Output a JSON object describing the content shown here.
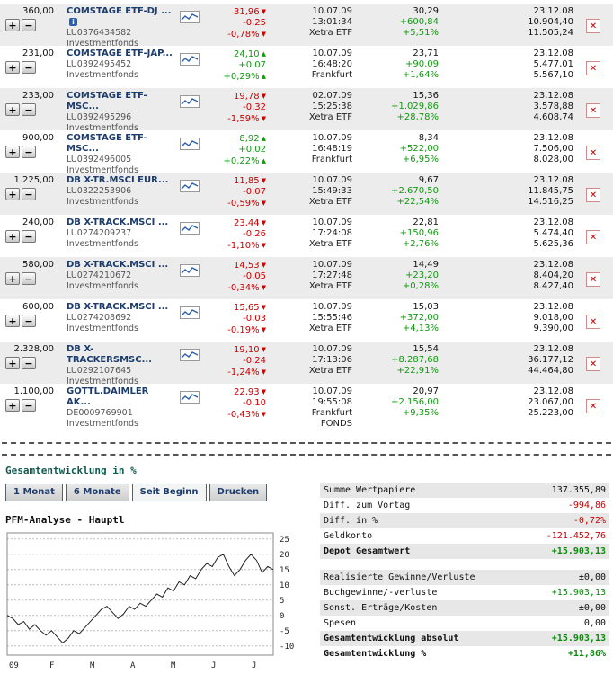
{
  "icons": {
    "plus": "+",
    "minus": "−",
    "delete": "✕",
    "up": "▲",
    "down": "▼",
    "info": "i"
  },
  "table": {
    "rows": [
      {
        "qty": "360,00",
        "name": "COMSTAGE ETF-DJ ...",
        "has_info": true,
        "isin": "LU0376434582",
        "category": "Investmentfonds",
        "price": "31,96",
        "trend": "neg",
        "change": "-0,25",
        "change_pct": "-0,78%",
        "date": "10.07.09",
        "time": "13:01:34",
        "exchange": "Xetra ETF",
        "exchange2": "",
        "buy_price": "30,29",
        "gain": "+600,84",
        "gain_pct": "+5,51%",
        "buy_date": "23.12.08",
        "buy_value": "10.904,40",
        "cur_value": "11.505,24"
      },
      {
        "qty": "231,00",
        "name": "COMSTAGE ETF-JAP...",
        "has_info": false,
        "isin": "LU0392495452",
        "category": "Investmentfonds",
        "price": "24,10",
        "trend": "pos",
        "change": "+0,07",
        "change_pct": "+0,29%",
        "date": "10.07.09",
        "time": "16:48:20",
        "exchange": "Frankfurt",
        "exchange2": "",
        "buy_price": "23,71",
        "gain": "+90,09",
        "gain_pct": "+1,64%",
        "buy_date": "23.12.08",
        "buy_value": "5.477,01",
        "cur_value": "5.567,10"
      },
      {
        "qty": "233,00",
        "name": "COMSTAGE ETF-MSC...",
        "has_info": false,
        "isin": "LU0392495296",
        "category": "Investmentfonds",
        "price": "19,78",
        "trend": "neg",
        "change": "-0,32",
        "change_pct": "-1,59%",
        "date": "02.07.09",
        "time": "15:25:38",
        "exchange": "Xetra ETF",
        "exchange2": "",
        "buy_price": "15,36",
        "gain": "+1.029,86",
        "gain_pct": "+28,78%",
        "buy_date": "23.12.08",
        "buy_value": "3.578,88",
        "cur_value": "4.608,74"
      },
      {
        "qty": "900,00",
        "name": "COMSTAGE ETF-MSC...",
        "has_info": false,
        "isin": "LU0392496005",
        "category": "Investmentfonds",
        "price": "8,92",
        "trend": "pos",
        "change": "+0,02",
        "change_pct": "+0,22%",
        "date": "10.07.09",
        "time": "16:48:19",
        "exchange": "Frankfurt",
        "exchange2": "",
        "buy_price": "8,34",
        "gain": "+522,00",
        "gain_pct": "+6,95%",
        "buy_date": "23.12.08",
        "buy_value": "7.506,00",
        "cur_value": "8.028,00"
      },
      {
        "qty": "1.225,00",
        "name": "DB X-TR.MSCI EUR...",
        "has_info": false,
        "isin": "LU0322253906",
        "category": "Investmentfonds",
        "price": "11,85",
        "trend": "neg",
        "change": "-0,07",
        "change_pct": "-0,59%",
        "date": "10.07.09",
        "time": "15:49:33",
        "exchange": "Xetra ETF",
        "exchange2": "",
        "buy_price": "9,67",
        "gain": "+2.670,50",
        "gain_pct": "+22,54%",
        "buy_date": "23.12.08",
        "buy_value": "11.845,75",
        "cur_value": "14.516,25"
      },
      {
        "qty": "240,00",
        "name": "DB X-TRACK.MSCI ...",
        "has_info": false,
        "isin": "LU0274209237",
        "category": "Investmentfonds",
        "price": "23,44",
        "trend": "neg",
        "change": "-0,26",
        "change_pct": "-1,10%",
        "date": "10.07.09",
        "time": "17:24:08",
        "exchange": "Xetra ETF",
        "exchange2": "",
        "buy_price": "22,81",
        "gain": "+150,96",
        "gain_pct": "+2,76%",
        "buy_date": "23.12.08",
        "buy_value": "5.474,40",
        "cur_value": "5.625,36"
      },
      {
        "qty": "580,00",
        "name": "DB X-TRACK.MSCI ...",
        "has_info": false,
        "isin": "LU0274210672",
        "category": "Investmentfonds",
        "price": "14,53",
        "trend": "neg",
        "change": "-0,05",
        "change_pct": "-0,34%",
        "date": "10.07.09",
        "time": "17:27:48",
        "exchange": "Xetra ETF",
        "exchange2": "",
        "buy_price": "14,49",
        "gain": "+23,20",
        "gain_pct": "+0,28%",
        "buy_date": "23.12.08",
        "buy_value": "8.404,20",
        "cur_value": "8.427,40"
      },
      {
        "qty": "600,00",
        "name": "DB X-TRACK.MSCI ...",
        "has_info": false,
        "isin": "LU0274208692",
        "category": "Investmentfonds",
        "price": "15,65",
        "trend": "neg",
        "change": "-0,03",
        "change_pct": "-0,19%",
        "date": "10.07.09",
        "time": "15:55:46",
        "exchange": "Xetra ETF",
        "exchange2": "",
        "buy_price": "15,03",
        "gain": "+372,00",
        "gain_pct": "+4,13%",
        "buy_date": "23.12.08",
        "buy_value": "9.018,00",
        "cur_value": "9.390,00"
      },
      {
        "qty": "2.328,00",
        "name": "DB X-TRACKERSMSC...",
        "has_info": false,
        "isin": "LU0292107645",
        "category": "Investmentfonds",
        "price": "19,10",
        "trend": "neg",
        "change": "-0,24",
        "change_pct": "-1,24%",
        "date": "10.07.09",
        "time": "17:13:06",
        "exchange": "Xetra ETF",
        "exchange2": "",
        "buy_price": "15,54",
        "gain": "+8.287,68",
        "gain_pct": "+22,91%",
        "buy_date": "23.12.08",
        "buy_value": "36.177,12",
        "cur_value": "44.464,80"
      },
      {
        "qty": "1.100,00",
        "name": "GOTTL.DAIMLER AK...",
        "has_info": false,
        "isin": "DE0009769901",
        "category": "Investmentfonds",
        "price": "22,93",
        "trend": "neg",
        "change": "-0,10",
        "change_pct": "-0,43%",
        "date": "10.07.09",
        "time": "19:55:08",
        "exchange": "Frankfurt",
        "exchange2": "FONDS",
        "buy_price": "20,97",
        "gain": "+2.156,00",
        "gain_pct": "+9,35%",
        "buy_date": "23.12.08",
        "buy_value": "23.067,00",
        "cur_value": "25.223,00"
      }
    ]
  },
  "bottom": {
    "section_title": "Gesamtentwicklung in %",
    "tabs": [
      {
        "label": "1 Monat"
      },
      {
        "label": "6 Monate"
      },
      {
        "label": "Seit Beginn",
        "active": true
      },
      {
        "label": "Drucken"
      }
    ]
  },
  "chart_data": {
    "type": "line",
    "title": "PFM-Analyse - Hauptl",
    "x_labels": [
      "09",
      "F",
      "M",
      "A",
      "M",
      "J",
      "J"
    ],
    "y_ticks": [
      25,
      20,
      15,
      10,
      5,
      0,
      -5,
      -10
    ],
    "ylim": [
      -13,
      27
    ],
    "grid": true,
    "values": [
      0,
      -1,
      -3,
      -2,
      -4.5,
      -3,
      -5,
      -6.5,
      -5,
      -7,
      -9,
      -7.5,
      -5,
      -6,
      -4,
      -2,
      0,
      2,
      3,
      1,
      -1,
      0.5,
      3,
      2,
      4,
      3,
      5,
      7,
      6,
      9,
      8,
      11,
      10,
      13,
      12,
      15,
      17,
      16,
      19,
      20,
      16,
      13,
      15,
      18,
      20,
      18,
      14,
      16,
      15
    ]
  },
  "summary": {
    "rows": [
      {
        "label": "Summe Wertpapiere",
        "value": "137.355,89",
        "color": "black",
        "bold": false
      },
      {
        "label": "Diff. zum Vortag",
        "value": "-994,86",
        "color": "red",
        "bold": false
      },
      {
        "label": "Diff. in %",
        "value": "-0,72%",
        "color": "red",
        "bold": false
      },
      {
        "label": "Geldkonto",
        "value": "-121.452,76",
        "color": "red",
        "bold": false
      },
      {
        "label": "Depot Gesamtwert",
        "value": "+15.903,13",
        "color": "green",
        "bold": true
      },
      {
        "spacer": true
      },
      {
        "label": "Realisierte Gewinne/Verluste",
        "value": "±0,00",
        "color": "black",
        "bold": false
      },
      {
        "label": "Buchgewinne/-verluste",
        "value": "+15.903,13",
        "color": "green",
        "bold": false
      },
      {
        "label": "Sonst. Erträge/Kosten",
        "value": "±0,00",
        "color": "black",
        "bold": false
      },
      {
        "label": "Spesen",
        "value": "0,00",
        "color": "black",
        "bold": false
      },
      {
        "label": "Gesamtentwicklung absolut",
        "value": "+15.903,13",
        "color": "green",
        "bold": true
      },
      {
        "label": "Gesamtentwicklung %",
        "value": "+11,86%",
        "color": "green",
        "bold": true
      }
    ]
  },
  "colors": {
    "negative": "#cc0000",
    "positive": "#119911",
    "name_link": "#1b3c6d",
    "row_alt": "#ececec"
  }
}
